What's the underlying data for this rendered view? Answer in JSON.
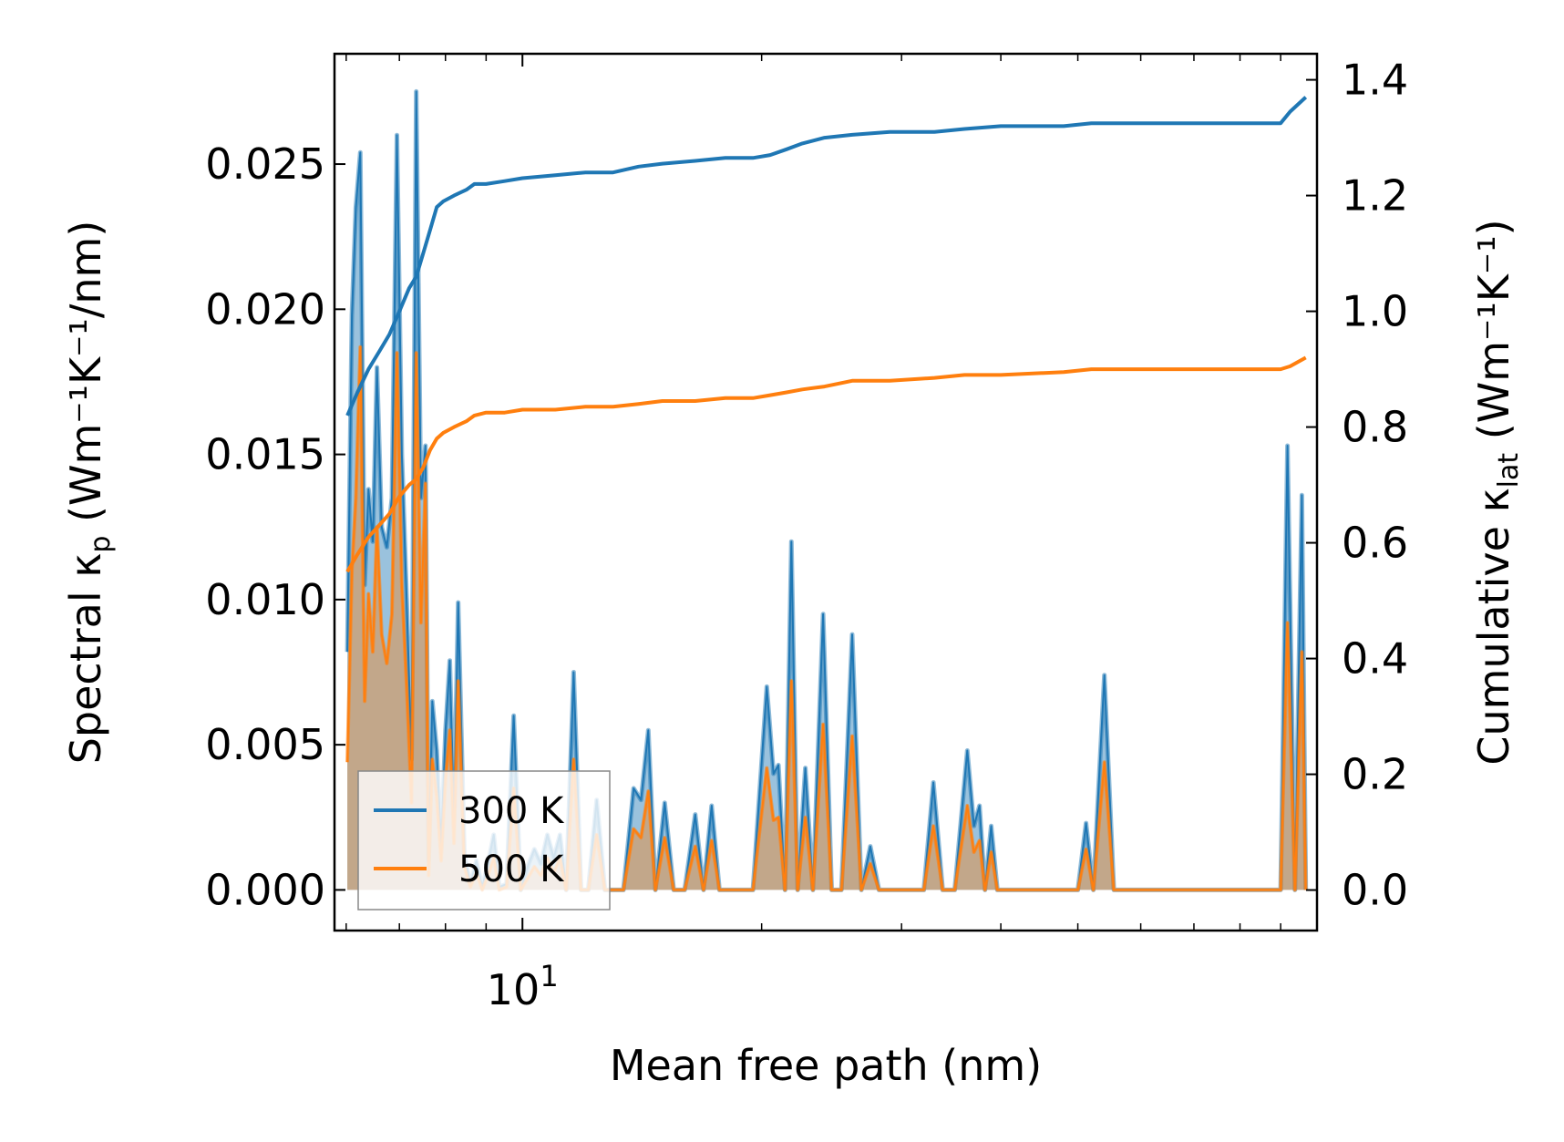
{
  "chart_data": {
    "type": "line",
    "xlabel": "Mean free path (nm)",
    "x_scale": "log",
    "xlim": [
      5.8,
      100
    ],
    "x_ticks": [
      {
        "value": 10,
        "base": "10",
        "exp": "1"
      }
    ],
    "left_axis": {
      "label_prefix": "Spectral κ",
      "label_sub": "p",
      "label_suffix": " (Wm⁻¹K⁻¹/nm)",
      "ylim": [
        -0.0014,
        0.0288
      ],
      "ticks": [
        "0.000",
        "0.005",
        "0.010",
        "0.015",
        "0.020",
        "0.025"
      ]
    },
    "right_axis": {
      "label_prefix": "Cumulative κ",
      "label_sub": "lat",
      "label_suffix": " (Wm⁻¹K⁻¹)",
      "ylim": [
        -0.07,
        1.445
      ],
      "ticks": [
        "0.0",
        "0.2",
        "0.4",
        "0.6",
        "0.8",
        "1.0",
        "1.2",
        "1.4"
      ]
    },
    "legend": {
      "position": "lower-left",
      "entries": [
        "300 K",
        "500 K"
      ]
    },
    "series": [
      {
        "name": "300 K",
        "color": "#1f77b4",
        "spectral": [
          [
            6.02,
            0.0082
          ],
          [
            6.1,
            0.0198
          ],
          [
            6.17,
            0.0235
          ],
          [
            6.25,
            0.0254
          ],
          [
            6.33,
            0.0105
          ],
          [
            6.4,
            0.0138
          ],
          [
            6.48,
            0.012
          ],
          [
            6.56,
            0.018
          ],
          [
            6.65,
            0.0125
          ],
          [
            6.75,
            0.0118
          ],
          [
            6.85,
            0.0135
          ],
          [
            6.95,
            0.026
          ],
          [
            7.05,
            0.015
          ],
          [
            7.15,
            0.01
          ],
          [
            7.25,
            0.0045
          ],
          [
            7.35,
            0.0275
          ],
          [
            7.45,
            0.0135
          ],
          [
            7.55,
            0.0153
          ],
          [
            7.62,
            0.001
          ],
          [
            7.7,
            0.0065
          ],
          [
            7.8,
            0.0048
          ],
          [
            7.9,
            0.0015
          ],
          [
            8.0,
            0.0055
          ],
          [
            8.1,
            0.0079
          ],
          [
            8.2,
            0.0025
          ],
          [
            8.3,
            0.0099
          ],
          [
            8.45,
            0.0012
          ],
          [
            8.6,
            0.0002
          ],
          [
            8.75,
            0.001
          ],
          [
            8.9,
            0.0001
          ],
          [
            9.05,
            0.0009
          ],
          [
            9.2,
            0.0019
          ],
          [
            9.35,
            0.0001
          ],
          [
            9.55,
            0.0002
          ],
          [
            9.75,
            0.006
          ],
          [
            9.95,
            0.0
          ],
          [
            10.15,
            0.0008
          ],
          [
            10.35,
            0.0014
          ],
          [
            10.55,
            0.0009
          ],
          [
            10.75,
            0.0019
          ],
          [
            10.95,
            0.0011
          ],
          [
            11.15,
            0.0019
          ],
          [
            11.35,
            0.0
          ],
          [
            11.6,
            0.0075
          ],
          [
            11.85,
            0.0
          ],
          [
            12.1,
            0.0
          ],
          [
            12.4,
            0.0031
          ],
          [
            12.7,
            0.0
          ],
          [
            13.0,
            0.0
          ],
          [
            13.4,
            0.0
          ],
          [
            13.8,
            0.0035
          ],
          [
            14.1,
            0.0031
          ],
          [
            14.4,
            0.0055
          ],
          [
            14.7,
            0.0
          ],
          [
            15.1,
            0.003
          ],
          [
            15.5,
            0.0
          ],
          [
            16.0,
            0.0
          ],
          [
            16.5,
            0.0026
          ],
          [
            16.9,
            0.0
          ],
          [
            17.3,
            0.0029
          ],
          [
            17.7,
            0.0
          ],
          [
            18.2,
            0.0
          ],
          [
            18.8,
            0.0
          ],
          [
            19.5,
            0.0
          ],
          [
            20.3,
            0.007
          ],
          [
            20.7,
            0.004
          ],
          [
            21.0,
            0.0043
          ],
          [
            21.4,
            0.0
          ],
          [
            21.8,
            0.012
          ],
          [
            22.2,
            0.0
          ],
          [
            22.7,
            0.0042
          ],
          [
            23.2,
            0.0
          ],
          [
            23.9,
            0.0095
          ],
          [
            24.5,
            0.0
          ],
          [
            25.2,
            0.0
          ],
          [
            26.0,
            0.0088
          ],
          [
            26.7,
            0.0
          ],
          [
            27.4,
            0.0015
          ],
          [
            28.1,
            0.0
          ],
          [
            29.0,
            0.0
          ],
          [
            30.5,
            0.0
          ],
          [
            32.0,
            0.0
          ],
          [
            32.9,
            0.0037
          ],
          [
            33.8,
            0.0
          ],
          [
            35.0,
            0.0
          ],
          [
            36.3,
            0.0048
          ],
          [
            37.0,
            0.0022
          ],
          [
            37.6,
            0.0029
          ],
          [
            38.2,
            0.0
          ],
          [
            38.9,
            0.0022
          ],
          [
            39.6,
            0.0
          ],
          [
            42.0,
            0.0
          ],
          [
            48.0,
            0.0
          ],
          [
            50.0,
            0.0
          ],
          [
            51.2,
            0.0023
          ],
          [
            52.3,
            0.0
          ],
          [
            54.0,
            0.0074
          ],
          [
            55.5,
            0.0
          ],
          [
            65.0,
            0.0
          ],
          [
            90.0,
            0.0
          ],
          [
            91.8,
            0.0153
          ],
          [
            93.8,
            0.0
          ],
          [
            95.7,
            0.0136
          ],
          [
            96.8,
            0.0
          ]
        ],
        "cumulative": [
          [
            6.02,
            0.82
          ],
          [
            6.2,
            0.86
          ],
          [
            6.4,
            0.9
          ],
          [
            6.6,
            0.93
          ],
          [
            6.8,
            0.96
          ],
          [
            7.0,
            1.0
          ],
          [
            7.2,
            1.04
          ],
          [
            7.35,
            1.06
          ],
          [
            7.5,
            1.1
          ],
          [
            7.65,
            1.14
          ],
          [
            7.8,
            1.18
          ],
          [
            7.95,
            1.19
          ],
          [
            8.2,
            1.2
          ],
          [
            8.5,
            1.21
          ],
          [
            8.7,
            1.22
          ],
          [
            9.0,
            1.22
          ],
          [
            9.5,
            1.225
          ],
          [
            10.0,
            1.23
          ],
          [
            11.0,
            1.235
          ],
          [
            12.0,
            1.24
          ],
          [
            13.0,
            1.24
          ],
          [
            14.0,
            1.25
          ],
          [
            15.0,
            1.255
          ],
          [
            16.5,
            1.26
          ],
          [
            18.0,
            1.265
          ],
          [
            19.5,
            1.265
          ],
          [
            20.5,
            1.27
          ],
          [
            21.5,
            1.28
          ],
          [
            22.5,
            1.29
          ],
          [
            24.0,
            1.3
          ],
          [
            26.0,
            1.305
          ],
          [
            29.0,
            1.31
          ],
          [
            33.0,
            1.31
          ],
          [
            36.0,
            1.315
          ],
          [
            40.0,
            1.32
          ],
          [
            48.0,
            1.32
          ],
          [
            52.0,
            1.325
          ],
          [
            60.0,
            1.325
          ],
          [
            70.0,
            1.325
          ],
          [
            90.0,
            1.325
          ],
          [
            92.5,
            1.345
          ],
          [
            96.8,
            1.37
          ]
        ]
      },
      {
        "name": "500 K",
        "color": "#ff7f0e",
        "spectral": [
          [
            6.02,
            0.0044
          ],
          [
            6.1,
            0.011
          ],
          [
            6.17,
            0.0135
          ],
          [
            6.25,
            0.0187
          ],
          [
            6.33,
            0.0065
          ],
          [
            6.4,
            0.0102
          ],
          [
            6.48,
            0.0082
          ],
          [
            6.56,
            0.0125
          ],
          [
            6.65,
            0.0088
          ],
          [
            6.75,
            0.0078
          ],
          [
            6.85,
            0.0095
          ],
          [
            6.95,
            0.0185
          ],
          [
            7.05,
            0.0105
          ],
          [
            7.15,
            0.007
          ],
          [
            7.25,
            0.003
          ],
          [
            7.35,
            0.0185
          ],
          [
            7.45,
            0.0092
          ],
          [
            7.55,
            0.014
          ],
          [
            7.62,
            0.0005
          ],
          [
            7.7,
            0.0045
          ],
          [
            7.8,
            0.0032
          ],
          [
            7.9,
            0.001
          ],
          [
            8.0,
            0.0038
          ],
          [
            8.1,
            0.0055
          ],
          [
            8.2,
            0.0016
          ],
          [
            8.3,
            0.0072
          ],
          [
            8.45,
            0.0008
          ],
          [
            8.6,
            0.0001
          ],
          [
            8.75,
            0.0006
          ],
          [
            8.9,
            0.0
          ],
          [
            9.05,
            0.0005
          ],
          [
            9.2,
            0.0011
          ],
          [
            9.35,
            0.0
          ],
          [
            9.55,
            0.0001
          ],
          [
            9.75,
            0.0035
          ],
          [
            9.95,
            0.0
          ],
          [
            10.15,
            0.0004
          ],
          [
            10.35,
            0.0008
          ],
          [
            10.55,
            0.0005
          ],
          [
            10.75,
            0.0011
          ],
          [
            10.95,
            0.0006
          ],
          [
            11.15,
            0.0011
          ],
          [
            11.35,
            0.0
          ],
          [
            11.6,
            0.0045
          ],
          [
            11.85,
            0.0
          ],
          [
            12.1,
            0.0
          ],
          [
            12.4,
            0.0019
          ],
          [
            12.7,
            0.0
          ],
          [
            13.0,
            0.0
          ],
          [
            13.4,
            0.0
          ],
          [
            13.8,
            0.0021
          ],
          [
            14.1,
            0.0018
          ],
          [
            14.4,
            0.0034
          ],
          [
            14.7,
            0.0
          ],
          [
            15.1,
            0.0018
          ],
          [
            15.5,
            0.0
          ],
          [
            16.0,
            0.0
          ],
          [
            16.5,
            0.0015
          ],
          [
            16.9,
            0.0
          ],
          [
            17.3,
            0.0017
          ],
          [
            17.7,
            0.0
          ],
          [
            18.2,
            0.0
          ],
          [
            18.8,
            0.0
          ],
          [
            19.5,
            0.0
          ],
          [
            20.3,
            0.0042
          ],
          [
            20.7,
            0.0024
          ],
          [
            21.0,
            0.0025
          ],
          [
            21.4,
            0.0
          ],
          [
            21.8,
            0.0072
          ],
          [
            22.2,
            0.0
          ],
          [
            22.7,
            0.0025
          ],
          [
            23.2,
            0.0
          ],
          [
            23.9,
            0.0057
          ],
          [
            24.5,
            0.0
          ],
          [
            25.2,
            0.0
          ],
          [
            26.0,
            0.0053
          ],
          [
            26.7,
            0.0
          ],
          [
            27.4,
            0.0009
          ],
          [
            28.1,
            0.0
          ],
          [
            29.0,
            0.0
          ],
          [
            30.5,
            0.0
          ],
          [
            32.0,
            0.0
          ],
          [
            32.9,
            0.0022
          ],
          [
            33.8,
            0.0
          ],
          [
            35.0,
            0.0
          ],
          [
            36.3,
            0.0029
          ],
          [
            37.0,
            0.0013
          ],
          [
            37.6,
            0.0017
          ],
          [
            38.2,
            0.0
          ],
          [
            38.9,
            0.0013
          ],
          [
            39.6,
            0.0
          ],
          [
            42.0,
            0.0
          ],
          [
            48.0,
            0.0
          ],
          [
            50.0,
            0.0
          ],
          [
            51.2,
            0.0014
          ],
          [
            52.3,
            0.0
          ],
          [
            54.0,
            0.0044
          ],
          [
            55.5,
            0.0
          ],
          [
            65.0,
            0.0
          ],
          [
            90.0,
            0.0
          ],
          [
            91.8,
            0.0092
          ],
          [
            93.8,
            0.0
          ],
          [
            95.7,
            0.0082
          ],
          [
            96.8,
            0.0
          ]
        ],
        "cumulative": [
          [
            6.02,
            0.55
          ],
          [
            6.2,
            0.58
          ],
          [
            6.4,
            0.61
          ],
          [
            6.6,
            0.63
          ],
          [
            6.8,
            0.65
          ],
          [
            7.0,
            0.68
          ],
          [
            7.2,
            0.7
          ],
          [
            7.35,
            0.71
          ],
          [
            7.5,
            0.73
          ],
          [
            7.65,
            0.76
          ],
          [
            7.8,
            0.78
          ],
          [
            7.95,
            0.79
          ],
          [
            8.2,
            0.8
          ],
          [
            8.5,
            0.81
          ],
          [
            8.7,
            0.82
          ],
          [
            9.0,
            0.825
          ],
          [
            9.5,
            0.825
          ],
          [
            10.0,
            0.83
          ],
          [
            11.0,
            0.83
          ],
          [
            12.0,
            0.835
          ],
          [
            13.0,
            0.835
          ],
          [
            14.0,
            0.84
          ],
          [
            15.0,
            0.845
          ],
          [
            16.5,
            0.845
          ],
          [
            18.0,
            0.85
          ],
          [
            19.5,
            0.85
          ],
          [
            20.5,
            0.855
          ],
          [
            21.5,
            0.86
          ],
          [
            22.5,
            0.865
          ],
          [
            24.0,
            0.87
          ],
          [
            26.0,
            0.88
          ],
          [
            29.0,
            0.88
          ],
          [
            33.0,
            0.885
          ],
          [
            36.0,
            0.89
          ],
          [
            40.0,
            0.89
          ],
          [
            48.0,
            0.895
          ],
          [
            52.0,
            0.9
          ],
          [
            60.0,
            0.9
          ],
          [
            70.0,
            0.9
          ],
          [
            90.0,
            0.9
          ],
          [
            92.5,
            0.905
          ],
          [
            96.8,
            0.92
          ]
        ]
      }
    ]
  }
}
